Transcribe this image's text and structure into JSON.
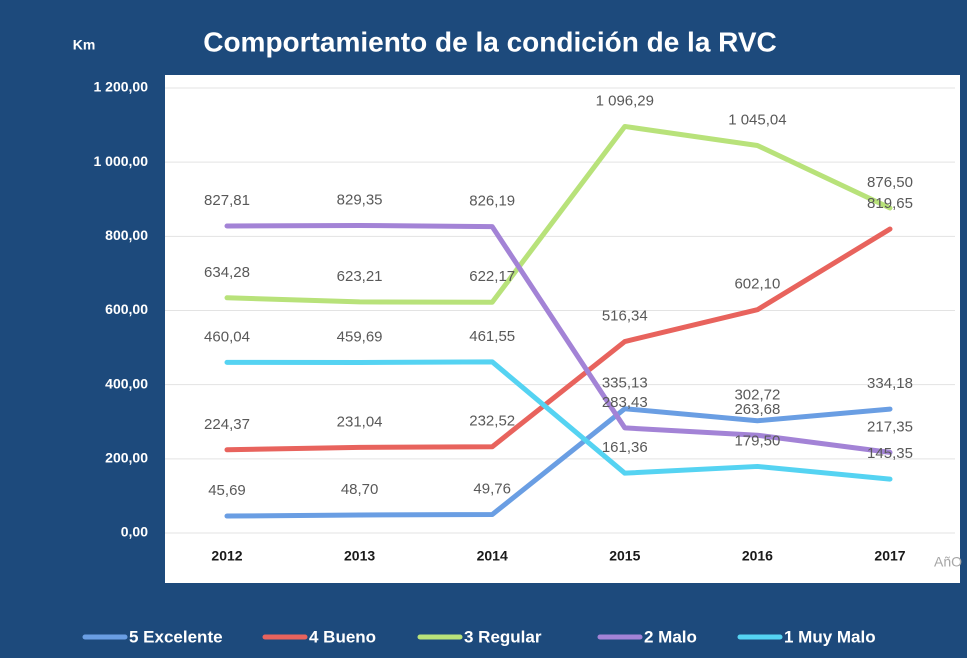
{
  "chart_data": {
    "type": "line",
    "title": "Comportamiento de la condición de la RVC",
    "y_label": "Km",
    "x_label": "AñO",
    "categories": [
      "2012",
      "2013",
      "2014",
      "2015",
      "2016",
      "2017"
    ],
    "ylim": [
      0,
      1200
    ],
    "yticks": [
      {
        "value": 0,
        "label": "0,00"
      },
      {
        "value": 200,
        "label": "200,00"
      },
      {
        "value": 400,
        "label": "400,00"
      },
      {
        "value": 600,
        "label": "600,00"
      },
      {
        "value": 800,
        "label": "800,00"
      },
      {
        "value": 1000,
        "label": "1 000,00"
      },
      {
        "value": 1200,
        "label": "1 200,00"
      }
    ],
    "grid": true,
    "legend": "bottom",
    "series": [
      {
        "name": "5 Excelente",
        "color": "#6a9ee3",
        "values": [
          45.69,
          48.7,
          49.76,
          335.13,
          302.72,
          334.18
        ],
        "value_labels": [
          "45,69",
          "48,70",
          "49,76",
          "335,13",
          "302,72",
          "334,18"
        ]
      },
      {
        "name": "4 Bueno",
        "color": "#e8635d",
        "values": [
          224.37,
          231.04,
          232.52,
          516.34,
          602.1,
          819.65
        ],
        "value_labels": [
          "224,37",
          "231,04",
          "232,52",
          "516,34",
          "602,10",
          "819,65"
        ]
      },
      {
        "name": "3 Regular",
        "color": "#b8e27a",
        "values": [
          634.28,
          623.21,
          622.17,
          1096.29,
          1045.04,
          876.5
        ],
        "value_labels": [
          "634,28",
          "623,21",
          "622,17",
          "1 096,29",
          "1 045,04",
          "876,50"
        ]
      },
      {
        "name": "2 Malo",
        "color": "#a383d6",
        "values": [
          827.81,
          829.35,
          826.19,
          283.43,
          263.68,
          217.35
        ],
        "value_labels": [
          "827,81",
          "829,35",
          "826,19",
          "283,43",
          "263,68",
          "217,35"
        ]
      },
      {
        "name": "1 Muy Malo",
        "color": "#55d3f2",
        "values": [
          460.04,
          459.69,
          461.55,
          161.36,
          179.5,
          145.35
        ],
        "value_labels": [
          "460,04",
          "459,69",
          "461,55",
          "161,36",
          "179,50",
          "145,35"
        ]
      }
    ]
  }
}
